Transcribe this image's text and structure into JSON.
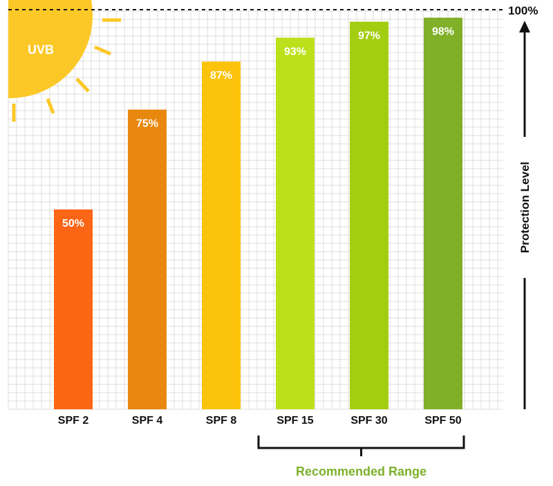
{
  "chart_data": {
    "type": "bar",
    "categories": [
      "SPF 2",
      "SPF 4",
      "SPF 8",
      "SPF 15",
      "SPF 30",
      "SPF 50"
    ],
    "values": [
      50,
      75,
      87,
      93,
      97,
      98
    ],
    "value_labels": [
      "50%",
      "75%",
      "87%",
      "93%",
      "97%",
      "98%"
    ],
    "bar_colors": [
      "#fb6514",
      "#e8880e",
      "#fcc30c",
      "#bde01c",
      "#a3cd11",
      "#80b028"
    ],
    "ylim": [
      0,
      100
    ],
    "max_line_label": "100%",
    "ylabel": "Protection Level",
    "grid": true,
    "legend": "none"
  },
  "decoration": {
    "sun_label": "UVB",
    "sun_color": "#fcc827",
    "sun_icon": "sun-icon"
  },
  "annotation": {
    "range_label": "Recommended Range",
    "range_color": "#7bb12b",
    "range_start_category": "SPF 15",
    "range_end_category": "SPF 50"
  }
}
